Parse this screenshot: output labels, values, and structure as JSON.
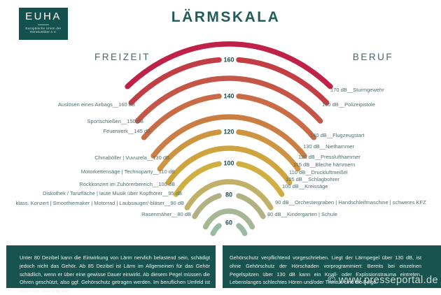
{
  "logo": {
    "acronym": "EUHA",
    "subtitle_line1": "Europäische Union der",
    "subtitle_line2": "Hörakustiker e.V."
  },
  "title": "LÄRMSKALA",
  "headings": {
    "left": "FREIZEIT",
    "right": "BERUF"
  },
  "watermark": "© www.presseportal.de",
  "colors": {
    "brand_teal": "#14504d",
    "title_text": "#215c58",
    "item_text": "#4d6f6d",
    "arc_tick_label": "#1d4e4b",
    "footer_bg": "#19534f",
    "footer_text": "#e9f1f0"
  },
  "chart_data": {
    "type": "arc-scale",
    "title": "LÄRMSKALA",
    "unit": "dB",
    "scale_min": 60,
    "scale_max": 170,
    "labeled_ticks": [
      160,
      140,
      120,
      100,
      80,
      60
    ],
    "arcs": [
      {
        "db": 170,
        "color": "#bf2148",
        "labeled": false
      },
      {
        "db": 160,
        "color": "#c33d45",
        "labeled": true
      },
      {
        "db": 150,
        "color": "#c55647",
        "labeled": false
      },
      {
        "db": 140,
        "color": "#c96b46",
        "labeled": true
      },
      {
        "db": 130,
        "color": "#cb7e43",
        "labeled": false
      },
      {
        "db": 120,
        "color": "#cd9442",
        "labeled": true
      },
      {
        "db": 110,
        "color": "#cfa43e",
        "labeled": false
      },
      {
        "db": 100,
        "color": "#d0ae41",
        "labeled": true
      },
      {
        "db": 90,
        "color": "#c1b065",
        "labeled": false
      },
      {
        "db": 80,
        "color": "#b1b184",
        "labeled": true
      },
      {
        "db": 70,
        "color": "#a5b795",
        "labeled": false
      },
      {
        "db": 60,
        "color": "#9cbaa3",
        "labeled": true
      }
    ],
    "freizeit_items": [
      {
        "db": 160,
        "db_text": "160 dB",
        "sources": [
          "Auslösen eines Airbags"
        ]
      },
      {
        "db": 150,
        "db_text": "150 dB",
        "sources": [
          "Sportschießen"
        ]
      },
      {
        "db": 145,
        "db_text": "145 dB",
        "sources": [
          "Feuerwerk"
        ]
      },
      {
        "db": 130,
        "db_text": "130 dB",
        "sources": [
          "Chinaböller",
          "Vuvuzela"
        ]
      },
      {
        "db": 110,
        "db_text": "110 dB",
        "sources": [
          "Motorkettensäge",
          "Technoparty"
        ]
      },
      {
        "db": 100,
        "db_text": "100 dB",
        "sources": [
          "Rockkonzert im Zuhörerbereich"
        ]
      },
      {
        "db": 95,
        "db_text": "95 dB",
        "sources": [
          "Diskothek / Tanzfläche",
          "laute Musik über Kopfhörer"
        ]
      },
      {
        "db": 90,
        "db_text": "90 dB",
        "sources": [
          "klass. Konzert",
          "Smoothiemaker",
          "Motorrad",
          "Laubsauger/-bläser"
        ]
      },
      {
        "db": 80,
        "db_text": "80 dB",
        "sources": [
          "Rasenmäher"
        ]
      }
    ],
    "beruf_items": [
      {
        "db": 170,
        "db_text": "170 dB",
        "sources": [
          "Sturmgewehr"
        ]
      },
      {
        "db": 160,
        "db_text": "160 dB",
        "sources": [
          "Polizeipistole"
        ]
      },
      {
        "db": 140,
        "db_text": "140 dB",
        "sources": [
          "Flugzeugstart"
        ]
      },
      {
        "db": 130,
        "db_text": "130 dB",
        "sources": [
          "Niethammer"
        ]
      },
      {
        "db": 120,
        "db_text": "120 dB",
        "sources": [
          "Presslufthammer"
        ]
      },
      {
        "db": 115,
        "db_text": "115 dB",
        "sources": [
          "Bleche hämmern"
        ]
      },
      {
        "db": 110,
        "db_text": "110 dB",
        "sources": [
          "Druckluftmeißel"
        ]
      },
      {
        "db": 105,
        "db_text": "105 dB",
        "sources": [
          "Schlagbohrer"
        ]
      },
      {
        "db": 100,
        "db_text": "100 dB",
        "sources": [
          "Kreissäge"
        ]
      },
      {
        "db": 90,
        "db_text": "90 dB",
        "sources": [
          "Orchestergraben",
          "Handschleifmaschine",
          "schweres KFZ"
        ]
      },
      {
        "db": 80,
        "db_text": "80 dB",
        "sources": [
          "Kindergarten",
          "Schule"
        ]
      }
    ]
  },
  "footer": {
    "left_paragraph": "Unter 80 Dezibel kann die Einwirkung von Lärm nervlich belastend sein, schädigt jedoch nicht das Gehör. Ab 85 Dezibel ist Lärm im Allgemeinen für das Gehör schädlich, wenn er über eine gewisse Dauer einwirkt. Ab diesem Pegel müssen die Ohren geschützt, also ggf. Gehörschutz getragen werden. Im beruflichen Umfeld ist dann die Nutzung von",
    "right_paragraph": "Gehörschutz verpflichtend vorgeschrieben. Liegt der Lärmpegel über 130 dB, ist ohne Gehörschutz der Hörschaden vorprogrammiert: Bereits bei einzelnen Pegelspitzen über 130 dB kann ein Knall- oder Explosionstrauma eintreten. Lebenslanges schlechtes Hören und/oder Tinnitus sind die Folge."
  }
}
